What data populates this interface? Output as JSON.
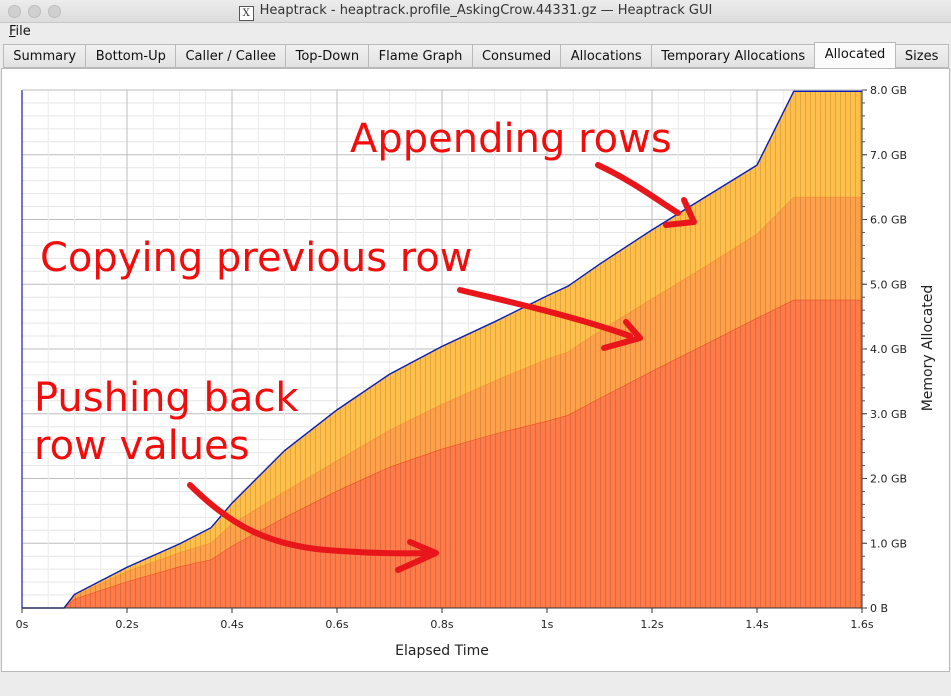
{
  "window": {
    "title": "Heaptrack - heaptrack.profile_AskingCrow.44331.gz — Heaptrack GUI",
    "app_icon": "x11-icon"
  },
  "menu": {
    "file_accel": "F",
    "file_rest": "ile"
  },
  "tabs": [
    {
      "label": "Summary",
      "active": false
    },
    {
      "label": "Bottom-Up",
      "active": false
    },
    {
      "label": "Caller / Callee",
      "active": false
    },
    {
      "label": "Top-Down",
      "active": false
    },
    {
      "label": "Flame Graph",
      "active": false
    },
    {
      "label": "Consumed",
      "active": false
    },
    {
      "label": "Allocations",
      "active": false
    },
    {
      "label": "Temporary Allocations",
      "active": false
    },
    {
      "label": "Allocated",
      "active": true
    },
    {
      "label": "Sizes",
      "active": false
    }
  ],
  "annotations": {
    "appending": "Appending rows",
    "copying": "Copying previous row",
    "pushing_line1": "Pushing back",
    "pushing_line2": "row values"
  },
  "chart_data": {
    "type": "area",
    "stacked": true,
    "xlabel": "Elapsed Time",
    "ylabel": "Memory Allocated",
    "xlim": [
      0,
      1.6
    ],
    "ylim": [
      0,
      8.0
    ],
    "x_ticks": [
      "0s",
      "0.2s",
      "0.4s",
      "0.6s",
      "0.8s",
      "1s",
      "1.2s",
      "1.4s",
      "1.6s"
    ],
    "y_ticks": [
      "0 B",
      "1.0 GB",
      "2.0 GB",
      "3.0 GB",
      "4.0 GB",
      "5.0 GB",
      "6.0 GB",
      "7.0 GB",
      "8.0 GB"
    ],
    "y_axis_position": "right",
    "grid": true,
    "x": [
      0,
      0.08,
      0.1,
      0.2,
      0.3,
      0.36,
      0.4,
      0.5,
      0.6,
      0.7,
      0.8,
      0.9,
      1.0,
      1.04,
      1.1,
      1.2,
      1.3,
      1.4,
      1.47,
      1.6
    ],
    "series": [
      {
        "color": "#ff7b4a",
        "values": [
          0,
          0,
          0.14,
          0.41,
          0.64,
          0.75,
          0.96,
          1.4,
          1.81,
          2.18,
          2.46,
          2.69,
          2.89,
          2.98,
          3.24,
          3.66,
          4.07,
          4.48,
          4.76,
          4.76
        ]
      },
      {
        "color": "#ffa04a",
        "values": [
          0,
          0,
          0.05,
          0.16,
          0.22,
          0.26,
          0.34,
          0.4,
          0.47,
          0.57,
          0.69,
          0.82,
          0.96,
          0.98,
          1.04,
          1.12,
          1.2,
          1.3,
          1.59,
          1.59
        ]
      },
      {
        "color": "#ffbf4a",
        "values": [
          0,
          0,
          0.02,
          0.06,
          0.13,
          0.23,
          0.32,
          0.63,
          0.78,
          0.86,
          0.89,
          0.91,
          0.97,
          1.01,
          1.03,
          1.06,
          1.07,
          1.06,
          1.63,
          1.63
        ]
      }
    ],
    "total_line_color": "#0b1eb4"
  }
}
